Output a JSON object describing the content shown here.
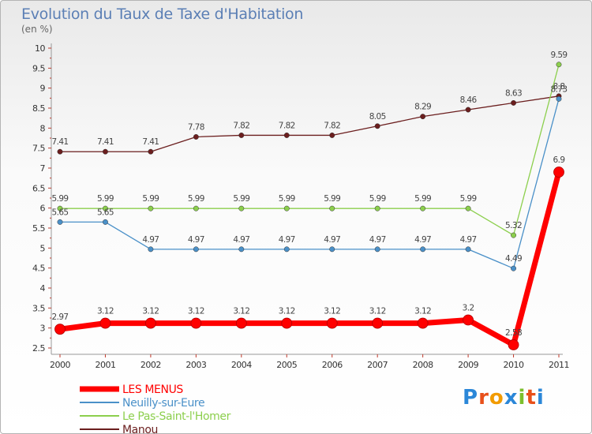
{
  "title": "Evolution du Taux de Taxe d'Habitation",
  "unit": "(en %)",
  "logo": {
    "letters": [
      "P",
      "r",
      "o",
      "x",
      "i",
      "t",
      "i"
    ],
    "colors": [
      "#2b87d8",
      "#e8501a",
      "#f29b00",
      "#2b87d8",
      "#7cbf2c",
      "#e8501a",
      "#2b87d8"
    ]
  },
  "chart_data": {
    "type": "line",
    "categories": [
      "2000",
      "2001",
      "2002",
      "2003",
      "2004",
      "2005",
      "2006",
      "2007",
      "2008",
      "2009",
      "2010",
      "2011"
    ],
    "ylim": [
      2.5,
      10
    ],
    "yticks": [
      "2.5",
      "3",
      "3.5",
      "4",
      "4.5",
      "5",
      "5.5",
      "6",
      "6.5",
      "7",
      "7.5",
      "8",
      "8.5",
      "9",
      "9.5",
      "10"
    ],
    "grid": false,
    "legend_position": "bottom-left",
    "series": [
      {
        "name": "Manou",
        "color": "#6b1e1e",
        "values": [
          7.41,
          7.41,
          7.41,
          7.78,
          7.82,
          7.82,
          7.82,
          8.05,
          8.29,
          8.46,
          8.63,
          8.8
        ],
        "labels": [
          "7.41",
          "7.41",
          "7.41",
          "7.78",
          "7.82",
          "7.82",
          "7.82",
          "8.05",
          "8.29",
          "8.46",
          "8.63",
          "8.8"
        ]
      },
      {
        "name": "Le Pas-Saint-l'Homer",
        "color": "#8ccf4d",
        "values": [
          5.99,
          5.99,
          5.99,
          5.99,
          5.99,
          5.99,
          5.99,
          5.99,
          5.99,
          5.99,
          5.32,
          9.59
        ],
        "labels": [
          "5.99",
          "5.99",
          "5.99",
          "5.99",
          "5.99",
          "5.99",
          "5.99",
          "5.99",
          "5.99",
          "5.99",
          "5.32",
          "9.59"
        ]
      },
      {
        "name": "Neuilly-sur-Eure",
        "color": "#4a90c8",
        "values": [
          5.65,
          5.65,
          4.97,
          4.97,
          4.97,
          4.97,
          4.97,
          4.97,
          4.97,
          4.97,
          4.49,
          8.73
        ],
        "labels": [
          "5.65",
          "5.65",
          "4.97",
          "4.97",
          "4.97",
          "4.97",
          "4.97",
          "4.97",
          "4.97",
          "4.97",
          "4.49",
          "8.73"
        ]
      },
      {
        "name": "LES MENUS",
        "color": "#ff0000",
        "values": [
          2.97,
          3.12,
          3.12,
          3.12,
          3.12,
          3.12,
          3.12,
          3.12,
          3.12,
          3.2,
          2.58,
          6.9
        ],
        "labels": [
          "2.97",
          "3.12",
          "3.12",
          "3.12",
          "3.12",
          "3.12",
          "3.12",
          "3.12",
          "3.12",
          "3.2",
          "2.58",
          "6.9"
        ]
      }
    ],
    "legend": [
      {
        "name": "LES MENUS",
        "color": "#ff0000"
      },
      {
        "name": "Neuilly-sur-Eure",
        "color": "#4a90c8"
      },
      {
        "name": "Le Pas-Saint-l'Homer",
        "color": "#8ccf4d"
      },
      {
        "name": "Manou",
        "color": "#6b1e1e"
      }
    ]
  }
}
